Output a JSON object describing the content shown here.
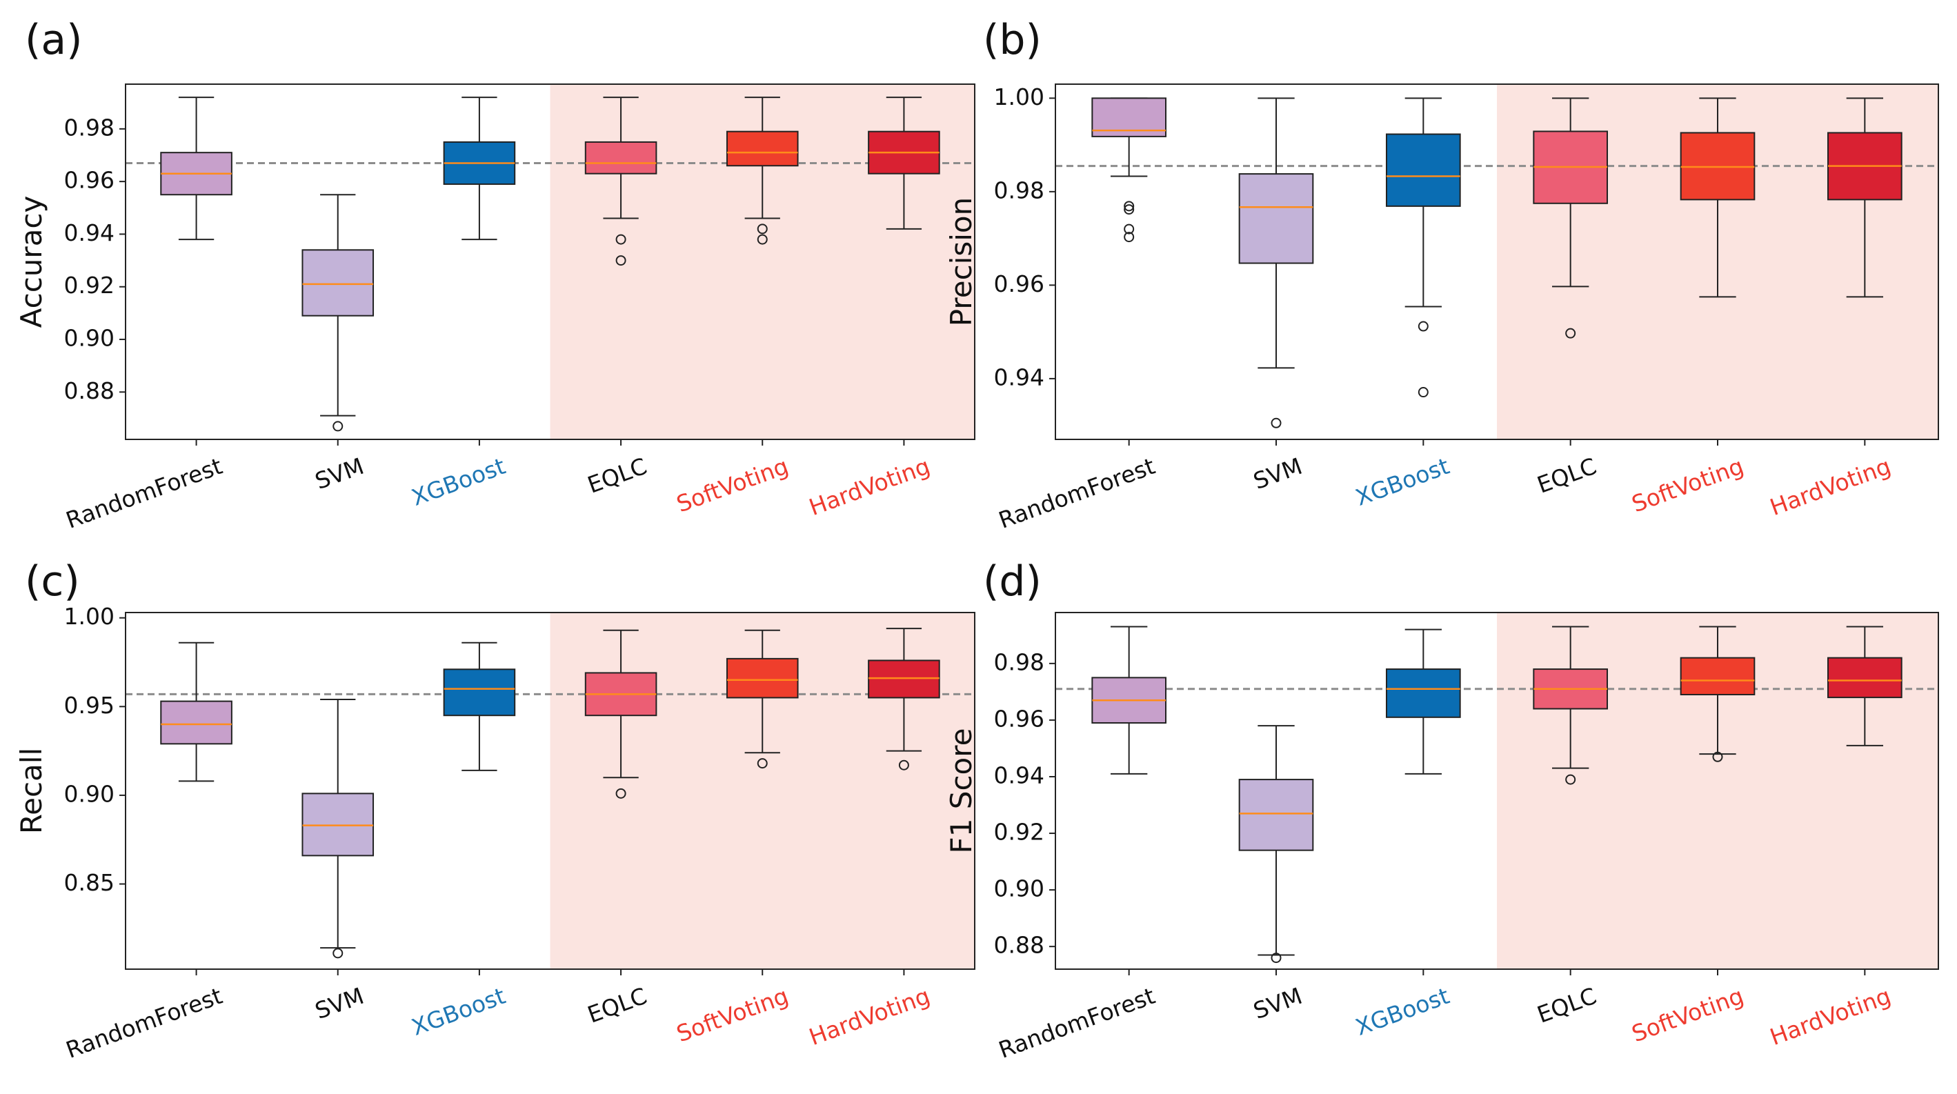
{
  "chart_data": [
    {
      "panel": "(a)",
      "type": "boxplot",
      "ylabel": "Accuracy",
      "ylim": [
        0.862,
        0.997
      ],
      "yticks": [
        "0.88",
        "0.90",
        "0.92",
        "0.94",
        "0.96",
        "0.98"
      ],
      "ytick_values": [
        0.88,
        0.9,
        0.92,
        0.94,
        0.96,
        0.98
      ],
      "reference_line": 0.967,
      "highlight_from": "EQLC",
      "categories": [
        "RandomForest",
        "SVM",
        "XGBoost",
        "EQLC",
        "SoftVoting",
        "HardVoting"
      ],
      "boxes": [
        {
          "name": "RandomForest",
          "whislo": 0.938,
          "q1": 0.955,
          "med": 0.963,
          "q3": 0.971,
          "whishi": 0.992,
          "fliers": []
        },
        {
          "name": "SVM",
          "whislo": 0.871,
          "q1": 0.909,
          "med": 0.921,
          "q3": 0.934,
          "whishi": 0.955,
          "fliers": [
            0.867
          ]
        },
        {
          "name": "XGBoost",
          "whislo": 0.938,
          "q1": 0.959,
          "med": 0.967,
          "q3": 0.975,
          "whishi": 0.992,
          "fliers": []
        },
        {
          "name": "EQLC",
          "whislo": 0.946,
          "q1": 0.963,
          "med": 0.967,
          "q3": 0.975,
          "whishi": 0.992,
          "fliers": [
            0.938,
            0.93
          ]
        },
        {
          "name": "SoftVoting",
          "whislo": 0.946,
          "q1": 0.966,
          "med": 0.971,
          "q3": 0.979,
          "whishi": 0.992,
          "fliers": [
            0.942,
            0.938
          ]
        },
        {
          "name": "HardVoting",
          "whislo": 0.942,
          "q1": 0.963,
          "med": 0.971,
          "q3": 0.979,
          "whishi": 0.992,
          "fliers": []
        }
      ]
    },
    {
      "panel": "(b)",
      "type": "boxplot",
      "ylabel": "Precision",
      "ylim": [
        0.927,
        1.003
      ],
      "yticks": [
        "0.94",
        "0.96",
        "0.98",
        "1.00"
      ],
      "ytick_values": [
        0.94,
        0.96,
        0.98,
        1.0
      ],
      "reference_line": 0.9855,
      "highlight_from": "EQLC",
      "categories": [
        "RandomForest",
        "SVM",
        "XGBoost",
        "EQLC",
        "SoftVoting",
        "HardVoting"
      ],
      "boxes": [
        {
          "name": "RandomForest",
          "whislo": 0.9833,
          "q1": 0.9918,
          "med": 0.9931,
          "q3": 1.0,
          "whishi": 1.0,
          "fliers": [
            0.9769,
            0.9762,
            0.972,
            0.9703
          ]
        },
        {
          "name": "SVM",
          "whislo": 0.9423,
          "q1": 0.9647,
          "med": 0.9767,
          "q3": 0.9838,
          "whishi": 1.0,
          "fliers": [
            0.9305
          ]
        },
        {
          "name": "XGBoost",
          "whislo": 0.9554,
          "q1": 0.9769,
          "med": 0.9833,
          "q3": 0.9923,
          "whishi": 1.0,
          "fliers": [
            0.9512,
            0.9371
          ]
        },
        {
          "name": "EQLC",
          "whislo": 0.9597,
          "q1": 0.9775,
          "med": 0.9853,
          "q3": 0.9929,
          "whishi": 1.0,
          "fliers": [
            0.9497
          ]
        },
        {
          "name": "SoftVoting",
          "whislo": 0.9575,
          "q1": 0.9783,
          "med": 0.9853,
          "q3": 0.9926,
          "whishi": 1.0,
          "fliers": []
        },
        {
          "name": "HardVoting",
          "whislo": 0.9575,
          "q1": 0.9783,
          "med": 0.9855,
          "q3": 0.9926,
          "whishi": 1.0,
          "fliers": []
        }
      ]
    },
    {
      "panel": "(c)",
      "type": "boxplot",
      "ylabel": "Recall",
      "ylim": [
        0.802,
        1.003
      ],
      "yticks": [
        "0.85",
        "0.90",
        "0.95",
        "1.00"
      ],
      "ytick_values": [
        0.85,
        0.9,
        0.95,
        1.0
      ],
      "reference_line": 0.957,
      "highlight_from": "EQLC",
      "categories": [
        "RandomForest",
        "SVM",
        "XGBoost",
        "EQLC",
        "SoftVoting",
        "HardVoting"
      ],
      "boxes": [
        {
          "name": "RandomForest",
          "whislo": 0.908,
          "q1": 0.929,
          "med": 0.94,
          "q3": 0.953,
          "whishi": 0.986,
          "fliers": []
        },
        {
          "name": "SVM",
          "whislo": 0.814,
          "q1": 0.866,
          "med": 0.883,
          "q3": 0.901,
          "whishi": 0.954,
          "fliers": [
            0.811
          ]
        },
        {
          "name": "XGBoost",
          "whislo": 0.914,
          "q1": 0.945,
          "med": 0.96,
          "q3": 0.971,
          "whishi": 0.986,
          "fliers": []
        },
        {
          "name": "EQLC",
          "whislo": 0.91,
          "q1": 0.945,
          "med": 0.957,
          "q3": 0.969,
          "whishi": 0.993,
          "fliers": [
            0.901
          ]
        },
        {
          "name": "SoftVoting",
          "whislo": 0.924,
          "q1": 0.955,
          "med": 0.965,
          "q3": 0.977,
          "whishi": 0.993,
          "fliers": [
            0.918
          ]
        },
        {
          "name": "HardVoting",
          "whislo": 0.925,
          "q1": 0.955,
          "med": 0.966,
          "q3": 0.976,
          "whishi": 0.994,
          "fliers": [
            0.917
          ]
        }
      ]
    },
    {
      "panel": "(d)",
      "type": "boxplot",
      "ylabel": "F1 Score",
      "ylim": [
        0.872,
        0.998
      ],
      "yticks": [
        "0.88",
        "0.90",
        "0.92",
        "0.94",
        "0.96",
        "0.98"
      ],
      "ytick_values": [
        0.88,
        0.9,
        0.92,
        0.94,
        0.96,
        0.98
      ],
      "reference_line": 0.971,
      "highlight_from": "EQLC",
      "categories": [
        "RandomForest",
        "SVM",
        "XGBoost",
        "EQLC",
        "SoftVoting",
        "HardVoting"
      ],
      "boxes": [
        {
          "name": "RandomForest",
          "whislo": 0.941,
          "q1": 0.959,
          "med": 0.967,
          "q3": 0.975,
          "whishi": 0.993,
          "fliers": []
        },
        {
          "name": "SVM",
          "whislo": 0.877,
          "q1": 0.914,
          "med": 0.927,
          "q3": 0.939,
          "whishi": 0.958,
          "fliers": [
            0.876
          ]
        },
        {
          "name": "XGBoost",
          "whislo": 0.941,
          "q1": 0.961,
          "med": 0.971,
          "q3": 0.978,
          "whishi": 0.992,
          "fliers": []
        },
        {
          "name": "EQLC",
          "whislo": 0.943,
          "q1": 0.964,
          "med": 0.971,
          "q3": 0.978,
          "whishi": 0.993,
          "fliers": [
            0.939
          ]
        },
        {
          "name": "SoftVoting",
          "whislo": 0.948,
          "q1": 0.969,
          "med": 0.974,
          "q3": 0.982,
          "whishi": 0.993,
          "fliers": [
            0.947
          ]
        },
        {
          "name": "HardVoting",
          "whislo": 0.951,
          "q1": 0.968,
          "med": 0.974,
          "q3": 0.982,
          "whishi": 0.993,
          "fliers": []
        }
      ]
    }
  ],
  "style": {
    "box_colors": [
      "#c7a0cb",
      "#c3b3d8",
      "#0a6db3",
      "#ec5e74",
      "#ef3e2c",
      "#d92132"
    ],
    "label_colors": [
      "#111111",
      "#111111",
      "#1f77b4",
      "#111111",
      "#ee3b2f",
      "#ee3b2f"
    ],
    "median_color": "#ff8c1a",
    "reference_line_color": "#8c8c8c",
    "highlight_color": "#fbe4e0"
  }
}
